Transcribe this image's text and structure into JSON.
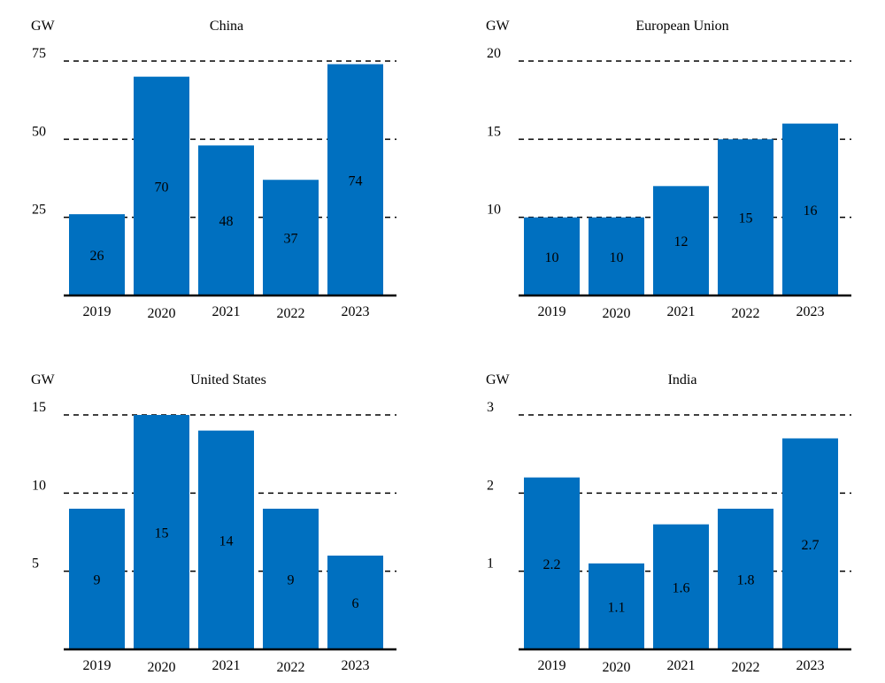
{
  "chart_data": [
    {
      "type": "bar",
      "title": "China",
      "ylabel": "GW",
      "ylim": [
        0,
        75
      ],
      "yticks": [
        25,
        50,
        75
      ],
      "grid": true,
      "categories": [
        "2019",
        "2020",
        "2021",
        "2022",
        "2023"
      ],
      "values": [
        26,
        70,
        48,
        37,
        74
      ],
      "value_labels": [
        "26",
        "70",
        "48",
        "37",
        "74"
      ],
      "bar_color": "#0070C0"
    },
    {
      "type": "bar",
      "title": "European Union",
      "ylabel": "GW",
      "ylim": [
        5,
        20
      ],
      "yticks": [
        10,
        15,
        20
      ],
      "grid": true,
      "categories": [
        "2019",
        "2020",
        "2021",
        "2022",
        "2023"
      ],
      "values": [
        10,
        10,
        12,
        15,
        16
      ],
      "value_labels": [
        "10",
        "10",
        "12",
        "15",
        "16"
      ],
      "bar_color": "#0070C0"
    },
    {
      "type": "bar",
      "title": "United States",
      "ylabel": "GW",
      "ylim": [
        0,
        15
      ],
      "yticks": [
        5,
        10,
        15
      ],
      "grid": true,
      "categories": [
        "2019",
        "2020",
        "2021",
        "2022",
        "2023"
      ],
      "values": [
        9,
        15,
        14,
        9,
        6
      ],
      "value_labels": [
        "9",
        "15",
        "14",
        "9",
        "6"
      ],
      "bar_color": "#0070C0"
    },
    {
      "type": "bar",
      "title": "India",
      "ylabel": "GW",
      "ylim": [
        0,
        3
      ],
      "yticks": [
        1,
        2,
        3
      ],
      "grid": true,
      "categories": [
        "2019",
        "2020",
        "2021",
        "2022",
        "2023"
      ],
      "values": [
        2.2,
        1.1,
        1.6,
        1.8,
        2.7
      ],
      "value_labels": [
        "2.2",
        "1.1",
        "1.6",
        "1.8",
        "2.7"
      ],
      "bar_color": "#0070C0"
    }
  ]
}
